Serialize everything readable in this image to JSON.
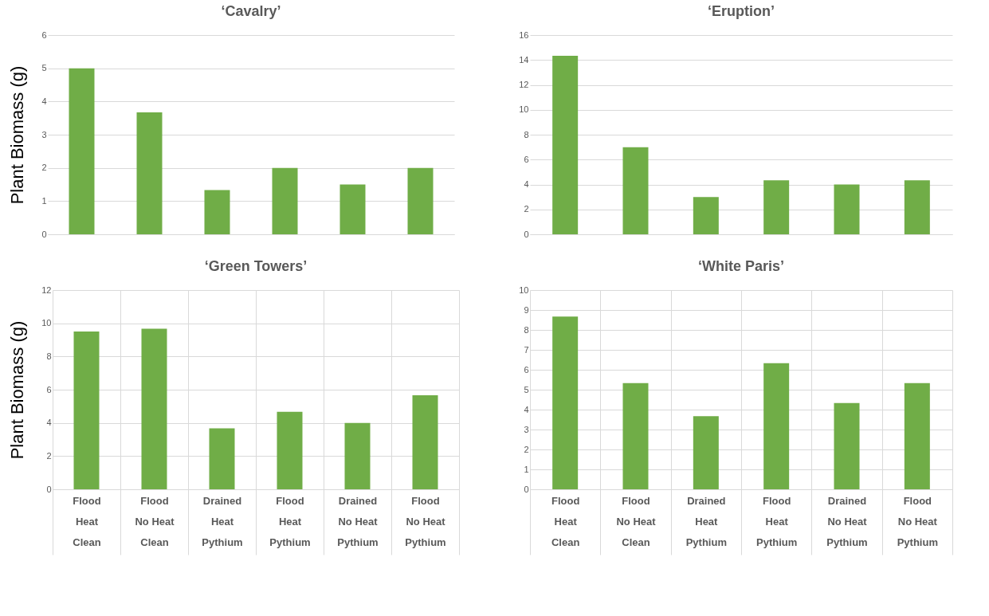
{
  "chart_data": [
    {
      "type": "bar",
      "title": "‘Cavalry’",
      "ylabel": "Plant Biomass (g)",
      "categories": [
        null,
        null,
        null,
        null,
        null,
        null
      ],
      "values": [
        5,
        3.67,
        1.33,
        2,
        1.5,
        2
      ],
      "color": "#70ad47",
      "ylim": [
        0,
        6
      ],
      "yticks": [
        0,
        1,
        2,
        3,
        4,
        5,
        6
      ],
      "grid": "y",
      "tick_labels": "y"
    },
    {
      "type": "bar",
      "title": "‘Eruption’",
      "categories": [
        null,
        null,
        null,
        null,
        null,
        null
      ],
      "values": [
        14.33,
        7,
        3,
        4.33,
        4,
        4.33
      ],
      "color": "#70ad47",
      "ylim": [
        0,
        16
      ],
      "yticks": [
        0,
        2,
        4,
        6,
        8,
        10,
        12,
        14,
        16
      ],
      "grid": "y",
      "tick_labels": "y"
    },
    {
      "type": "bar",
      "title": "‘Green Towers’",
      "ylabel": "Plant Biomass (g)",
      "categories": [
        "Flood\nHeat\nClean",
        "Flood\nNo Heat\nClean",
        "Drained\nHeat\nPythium",
        "Flood\nHeat\nPythium",
        "Drained\nNo Heat\nPythium",
        "Flood\nNo Heat\nPythium"
      ],
      "values": [
        9.5,
        9.67,
        3.67,
        4.67,
        4,
        5.67
      ],
      "color": "#70ad47",
      "ylim": [
        0,
        12
      ],
      "yticks": [
        0,
        2,
        4,
        6,
        8,
        10,
        12
      ],
      "grid": "y"
    },
    {
      "type": "bar",
      "title": "‘White Paris’",
      "categories": [
        "Flood\nHeat\nClean",
        "Flood\nNo Heat\nClean",
        "Drained\nHeat\nPythium",
        "Flood\nHeat\nPythium",
        "Drained\nNo Heat\nPythium",
        "Flood\nNo Heat\nPythium"
      ],
      "values": [
        8.67,
        5.33,
        3.67,
        6.33,
        4.33,
        5.33
      ],
      "color": "#70ad47",
      "ylim": [
        0,
        10
      ],
      "yticks": [
        0,
        1,
        2,
        3,
        4,
        5,
        6,
        7,
        8,
        9,
        10
      ],
      "grid": "y"
    }
  ]
}
